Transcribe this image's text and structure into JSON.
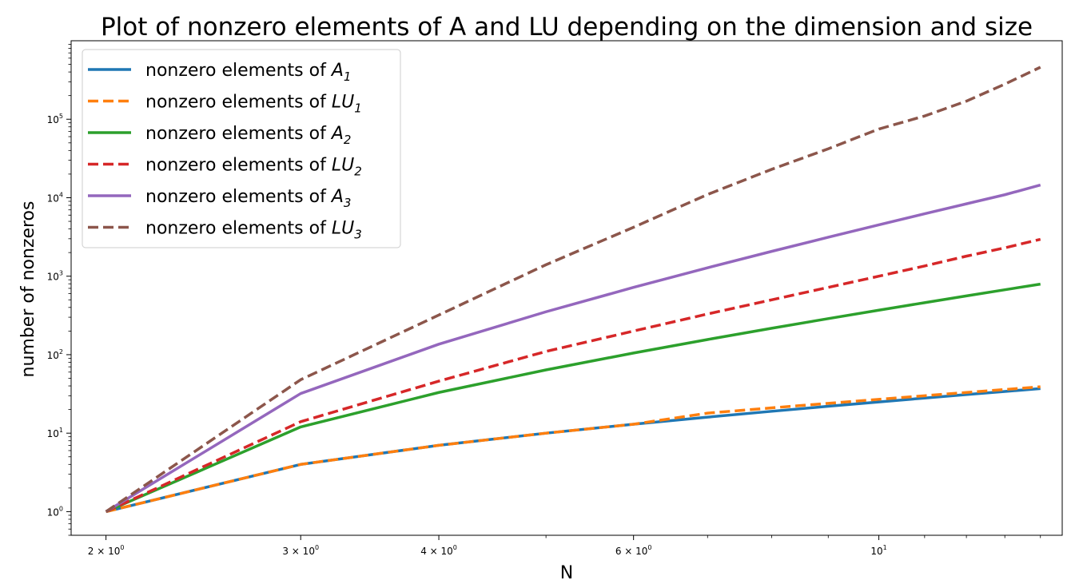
{
  "chart_data": {
    "type": "line",
    "title": "Plot of nonzero elements of A and LU depending on the dimension and size",
    "xlabel": "N",
    "ylabel": "number of nonzeros",
    "xscale": "log",
    "yscale": "log",
    "xlim": [
      1.86,
      14.65
    ],
    "ylim": [
      0.5,
      1000000
    ],
    "grid": false,
    "legend_position": "top-left",
    "x": [
      2,
      3,
      4,
      5,
      6,
      7,
      8,
      9,
      10,
      11,
      12,
      13,
      14
    ],
    "x_ticks": [
      {
        "value": 2,
        "base": "2 × 10",
        "exp": "0"
      },
      {
        "value": 3,
        "base": "3 × 10",
        "exp": "0"
      },
      {
        "value": 4,
        "base": "4 × 10",
        "exp": "0"
      },
      {
        "value": 6,
        "base": "6 × 10",
        "exp": "0"
      },
      {
        "value": 10,
        "base": "10",
        "exp": "1"
      }
    ],
    "y_ticks": [
      {
        "value": 1,
        "base": "10",
        "exp": "0"
      },
      {
        "value": 10,
        "base": "10",
        "exp": "1"
      },
      {
        "value": 100,
        "base": "10",
        "exp": "2"
      },
      {
        "value": 1000,
        "base": "10",
        "exp": "3"
      },
      {
        "value": 10000,
        "base": "10",
        "exp": "4"
      },
      {
        "value": 100000,
        "base": "10",
        "exp": "5"
      }
    ],
    "series": [
      {
        "name": "nonzero elements of A",
        "sub": "1",
        "var": "A",
        "color": "#1f77b4",
        "dash": "solid",
        "values": [
          1,
          4,
          7,
          10,
          13,
          16,
          19,
          22,
          25,
          28,
          31,
          34,
          37
        ]
      },
      {
        "name": "nonzero elements of LU",
        "sub": "1",
        "var": "LU",
        "color": "#ff7f0e",
        "dash": "dashed",
        "values": [
          1,
          4,
          7,
          10,
          13,
          18,
          21,
          24,
          27,
          30,
          33,
          36,
          39
        ]
      },
      {
        "name": "nonzero elements of A",
        "sub": "2",
        "var": "A",
        "color": "#2ca02c",
        "dash": "solid",
        "values": [
          1,
          12,
          33,
          64,
          105,
          156,
          217,
          288,
          369,
          460,
          561,
          672,
          793
        ]
      },
      {
        "name": "nonzero elements of LU",
        "sub": "2",
        "var": "LU",
        "color": "#d62728",
        "dash": "dashed",
        "values": [
          1,
          14,
          46,
          110,
          200,
          330,
          500,
          720,
          1000,
          1350,
          1800,
          2300,
          2950
        ]
      },
      {
        "name": "nonzero elements of A",
        "sub": "3",
        "var": "A",
        "color": "#9467bd",
        "dash": "solid",
        "values": [
          1,
          32,
          136,
          352,
          720,
          1280,
          2072,
          3136,
          4512,
          6240,
          8360,
          10912,
          14500
        ]
      },
      {
        "name": "nonzero elements of LU",
        "sub": "3",
        "var": "LU",
        "color": "#8c564b",
        "dash": "dashed",
        "values": [
          1,
          48,
          320,
          1400,
          4200,
          11000,
          23000,
          42000,
          75000,
          110000,
          170000,
          280000,
          460000
        ]
      }
    ]
  }
}
